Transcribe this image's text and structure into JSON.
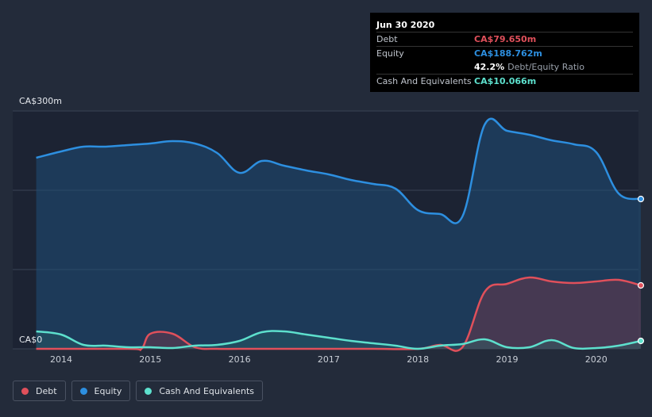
{
  "tooltip": {
    "date": "Jun 30 2020",
    "debt_label": "Debt",
    "debt_value": "CA$79.650m",
    "equity_label": "Equity",
    "equity_value": "CA$188.762m",
    "ratio_value": "42.2%",
    "ratio_label": "Debt/Equity Ratio",
    "cash_label": "Cash And Equivalents",
    "cash_value": "CA$10.066m"
  },
  "legend": {
    "debt": "Debt",
    "equity": "Equity",
    "cash": "Cash And Equivalents"
  },
  "colors": {
    "debt": "#e0505b",
    "equity": "#2d8fe0",
    "cash": "#5de0cd",
    "background": "#232b3a"
  },
  "chart_data": {
    "type": "area",
    "y_unit": "CA$ millions",
    "ylim": [
      0,
      300
    ],
    "y_tick_labels": [
      "CA$0",
      "CA$300m"
    ],
    "x_tick_labels": [
      "2014",
      "2015",
      "2016",
      "2017",
      "2018",
      "2019",
      "2020"
    ],
    "xlim": [
      2013.72,
      2020.5
    ],
    "series": [
      {
        "name": "Equity",
        "key": "equity",
        "x": [
          2013.72,
          2014.0,
          2014.25,
          2014.5,
          2014.75,
          2015.0,
          2015.25,
          2015.5,
          2015.75,
          2016.0,
          2016.25,
          2016.5,
          2016.75,
          2017.0,
          2017.25,
          2017.5,
          2017.75,
          2018.0,
          2018.25,
          2018.5,
          2018.75,
          2019.0,
          2019.25,
          2019.5,
          2019.75,
          2020.0,
          2020.25,
          2020.5
        ],
        "y": [
          241,
          249,
          255,
          255,
          257,
          259,
          262,
          259,
          247,
          222,
          237,
          231,
          225,
          220,
          213,
          208,
          202,
          175,
          170,
          167,
          283,
          275,
          270,
          263,
          258,
          248,
          196,
          189
        ]
      },
      {
        "name": "Debt",
        "key": "debt",
        "x": [
          2013.72,
          2014.75,
          2014.9,
          2015.0,
          2015.25,
          2015.5,
          2015.75,
          2016.0,
          2016.5,
          2017.0,
          2017.5,
          2018.0,
          2018.25,
          2018.5,
          2018.75,
          2019.0,
          2019.25,
          2019.5,
          2019.75,
          2020.0,
          2020.25,
          2020.5
        ],
        "y": [
          0,
          0,
          0,
          19,
          19,
          2,
          0,
          0,
          0,
          0,
          0,
          0,
          5,
          2,
          72,
          82,
          90,
          85,
          83,
          85,
          87,
          80
        ]
      },
      {
        "name": "Cash And Equivalents",
        "key": "cash",
        "x": [
          2013.72,
          2014.0,
          2014.25,
          2014.5,
          2014.75,
          2015.0,
          2015.25,
          2015.5,
          2015.75,
          2016.0,
          2016.25,
          2016.5,
          2016.75,
          2017.0,
          2017.25,
          2017.5,
          2017.75,
          2018.0,
          2018.25,
          2018.5,
          2018.75,
          2019.0,
          2019.25,
          2019.5,
          2019.75,
          2020.0,
          2020.25,
          2020.5
        ],
        "y": [
          22,
          18,
          5,
          4,
          2,
          2,
          1,
          4,
          5,
          10,
          21,
          22,
          18,
          14,
          10,
          7,
          4,
          0,
          4,
          6,
          12,
          2,
          2,
          11,
          1,
          1,
          4,
          10
        ]
      }
    ],
    "tooltip_x": 2020.5,
    "grid": true,
    "legend_position": "bottom-left"
  }
}
